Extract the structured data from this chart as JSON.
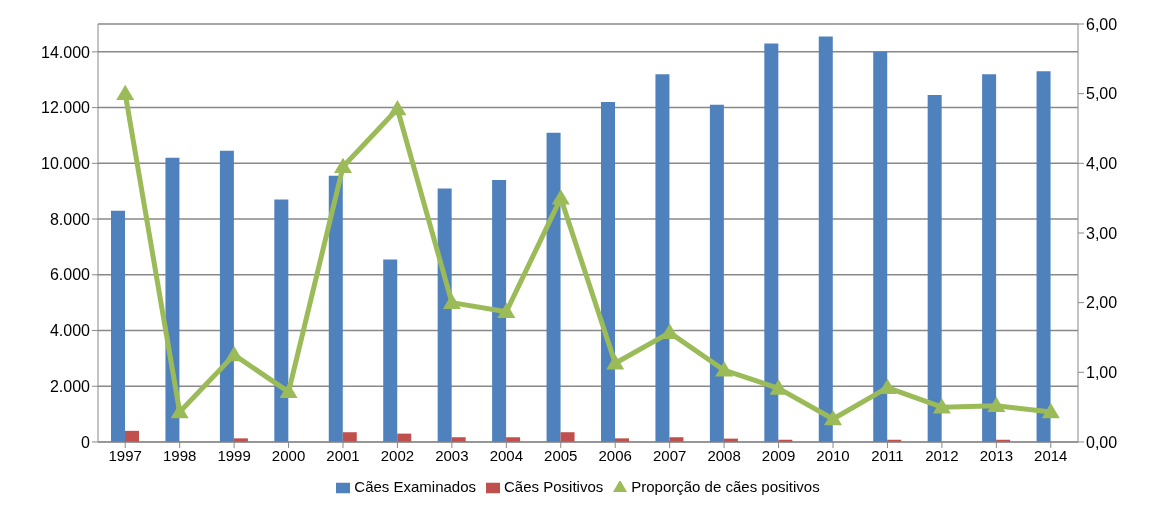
{
  "chart_data": {
    "type": "bar",
    "categories": [
      "1997",
      "1998",
      "1999",
      "2000",
      "2001",
      "2002",
      "2003",
      "2004",
      "2005",
      "2006",
      "2007",
      "2008",
      "2009",
      "2010",
      "2011",
      "2012",
      "2013",
      "2014"
    ],
    "series": [
      {
        "name": "Cães Examinados",
        "color": "#4f81bd",
        "values": [
          8300,
          10200,
          10450,
          8700,
          9550,
          6550,
          9100,
          9400,
          11100,
          12200,
          13200,
          12100,
          14300,
          14550,
          14000,
          12450,
          13200,
          13300
        ]
      },
      {
        "name": "Cães Positivos",
        "color": "#c0504d",
        "values": [
          400,
          null,
          130,
          null,
          350,
          300,
          170,
          170,
          350,
          130,
          170,
          120,
          80,
          null,
          80,
          null,
          80,
          null
        ]
      },
      {
        "name": "Proporção de cães positivos",
        "type": "line",
        "axis": "y2",
        "color": "#9bbb59",
        "marker": "triangle",
        "values": [
          5.0,
          0.43,
          1.25,
          0.72,
          3.95,
          4.78,
          2.0,
          1.87,
          3.5,
          1.13,
          1.57,
          1.03,
          0.77,
          0.33,
          0.78,
          0.5,
          0.52,
          0.43
        ]
      }
    ],
    "ylim": [
      0,
      15000
    ],
    "yticks": [
      {
        "value": 0,
        "label": "0"
      },
      {
        "value": 2000,
        "label": "2.000"
      },
      {
        "value": 4000,
        "label": "4.000"
      },
      {
        "value": 6000,
        "label": "6.000"
      },
      {
        "value": 8000,
        "label": "8.000"
      },
      {
        "value": 10000,
        "label": "10.000"
      },
      {
        "value": 12000,
        "label": "12.000"
      },
      {
        "value": 14000,
        "label": "14.000"
      }
    ],
    "y2lim": [
      0,
      6
    ],
    "y2ticks": [
      {
        "value": 0,
        "label": "0,00"
      },
      {
        "value": 1,
        "label": "1,00"
      },
      {
        "value": 2,
        "label": "2,00"
      },
      {
        "value": 3,
        "label": "3,00"
      },
      {
        "value": 4,
        "label": "4,00"
      },
      {
        "value": 5,
        "label": "5,00"
      },
      {
        "value": 6,
        "label": "6,00"
      }
    ],
    "grid": "y",
    "legend": "bottom"
  }
}
